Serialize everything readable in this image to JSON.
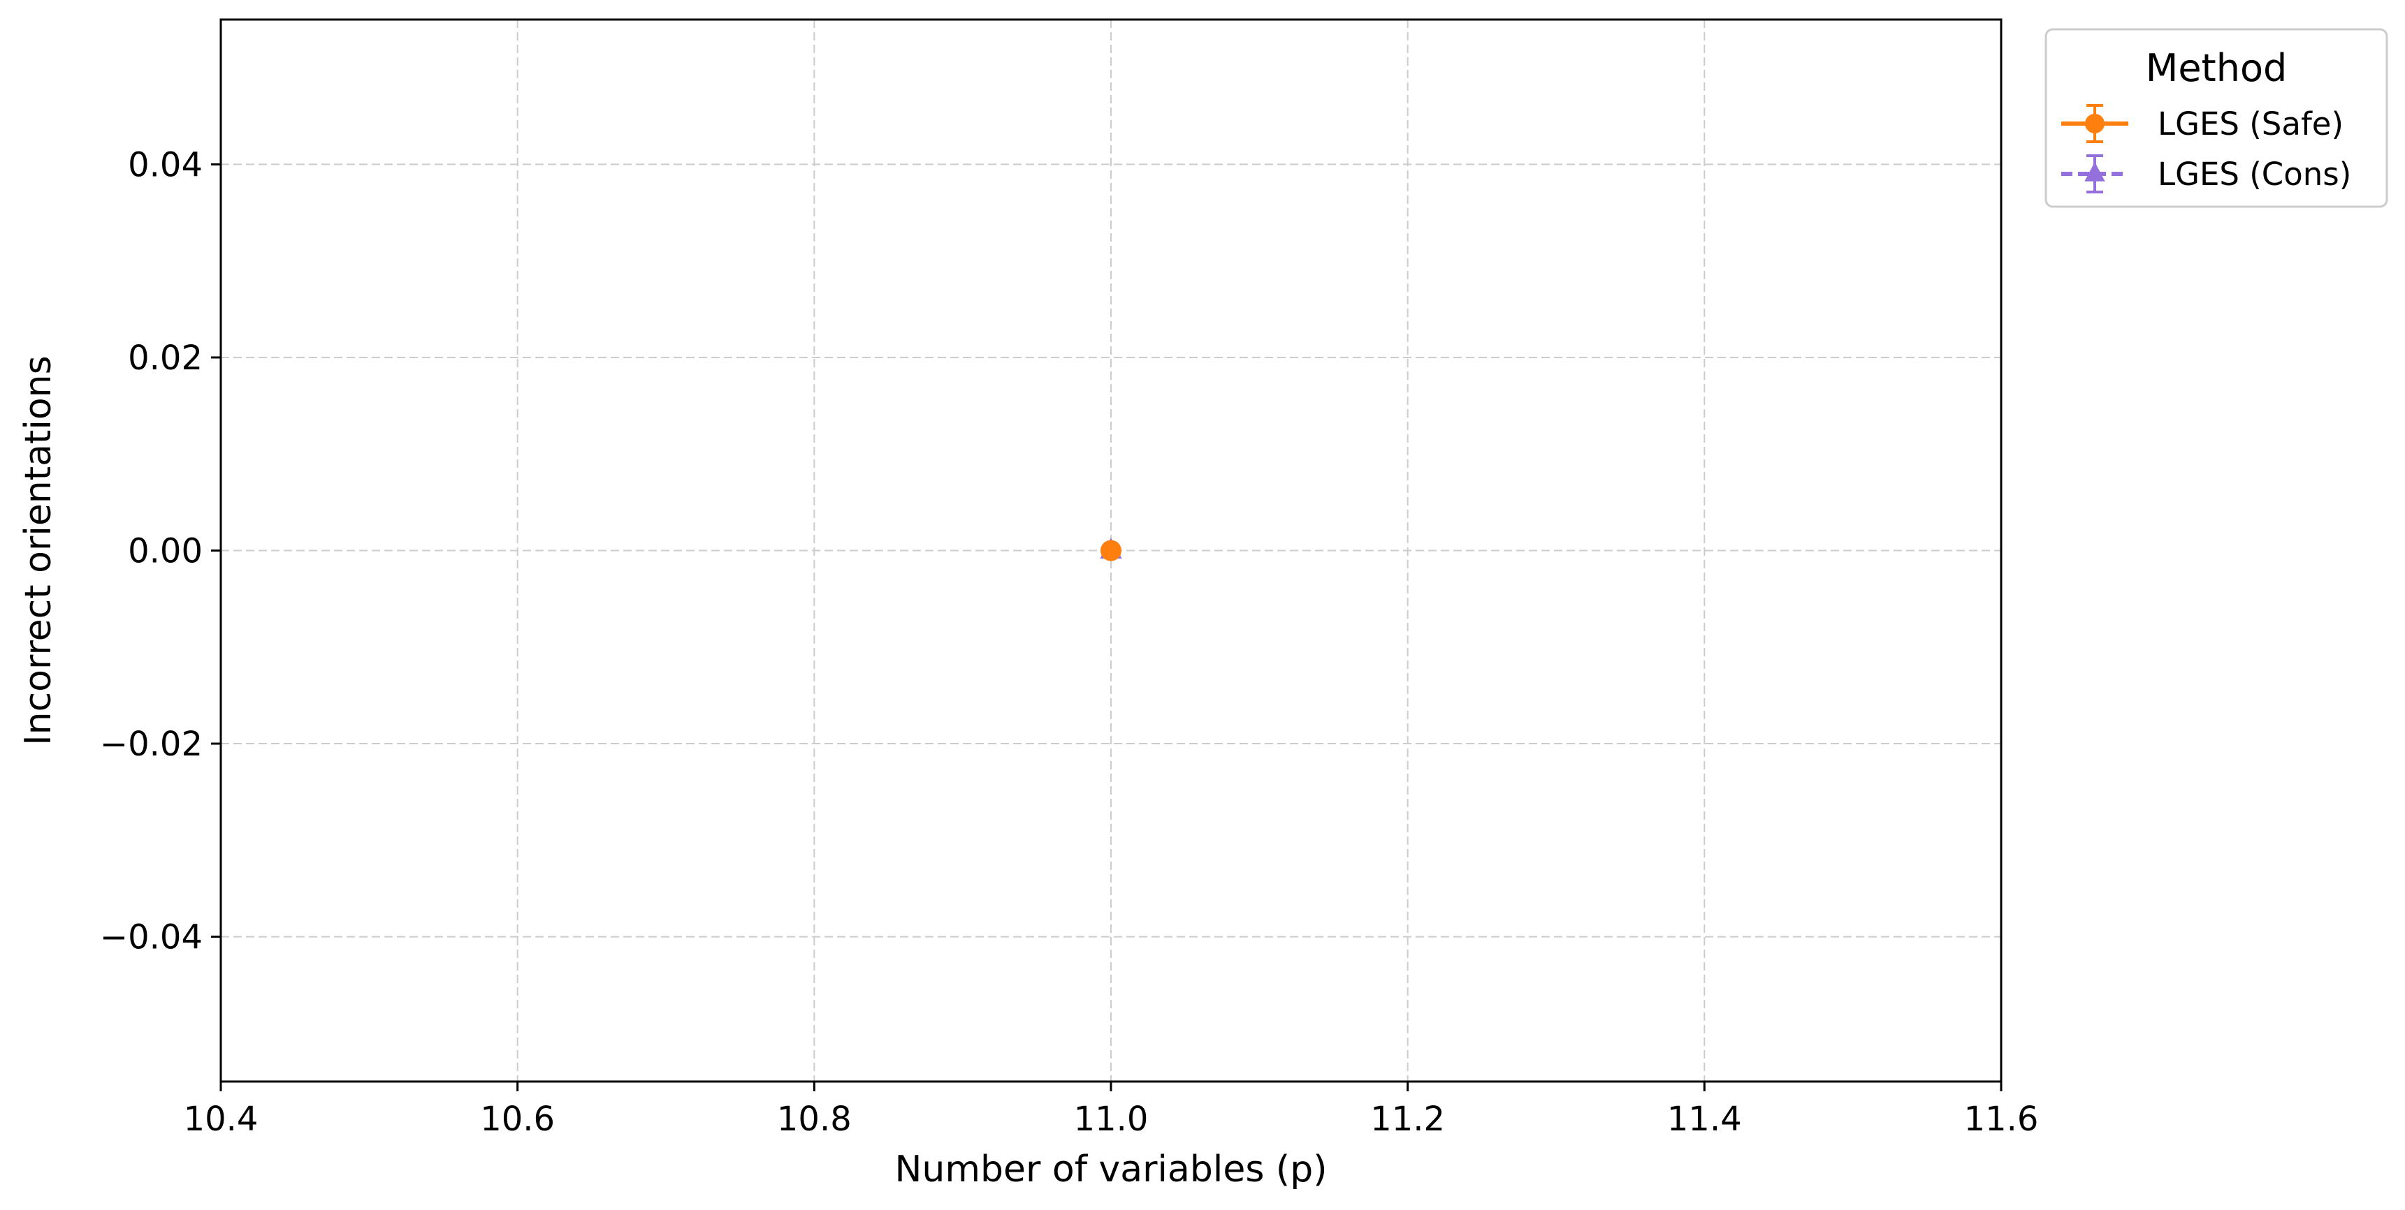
{
  "chart_data": {
    "type": "line",
    "xlabel": "Number of variables (p)",
    "ylabel": "Incorrect orientations",
    "xlim": [
      10.4,
      11.6
    ],
    "ylim": [
      -0.055,
      0.055
    ],
    "x_ticks": [
      "10.4",
      "10.6",
      "10.8",
      "11.0",
      "11.2",
      "11.4",
      "11.6"
    ],
    "y_ticks": [
      "−0.04",
      "−0.02",
      "0.00",
      "0.02",
      "0.04"
    ],
    "grid": true,
    "legend": {
      "title": "Method",
      "placement": "outside-top-right"
    },
    "series": [
      {
        "name": "LGES (Safe)",
        "color": "#ff7f0e",
        "marker": "circle",
        "line_style": "solid",
        "x": [
          11.0
        ],
        "y": [
          0.0
        ],
        "error": [
          0.0
        ]
      },
      {
        "name": "LGES (Cons)",
        "color": "#9370db",
        "marker": "triangle",
        "line_style": "dashed",
        "x": [
          11.0
        ],
        "y": [
          0.0
        ],
        "error": [
          0.0
        ]
      }
    ]
  }
}
